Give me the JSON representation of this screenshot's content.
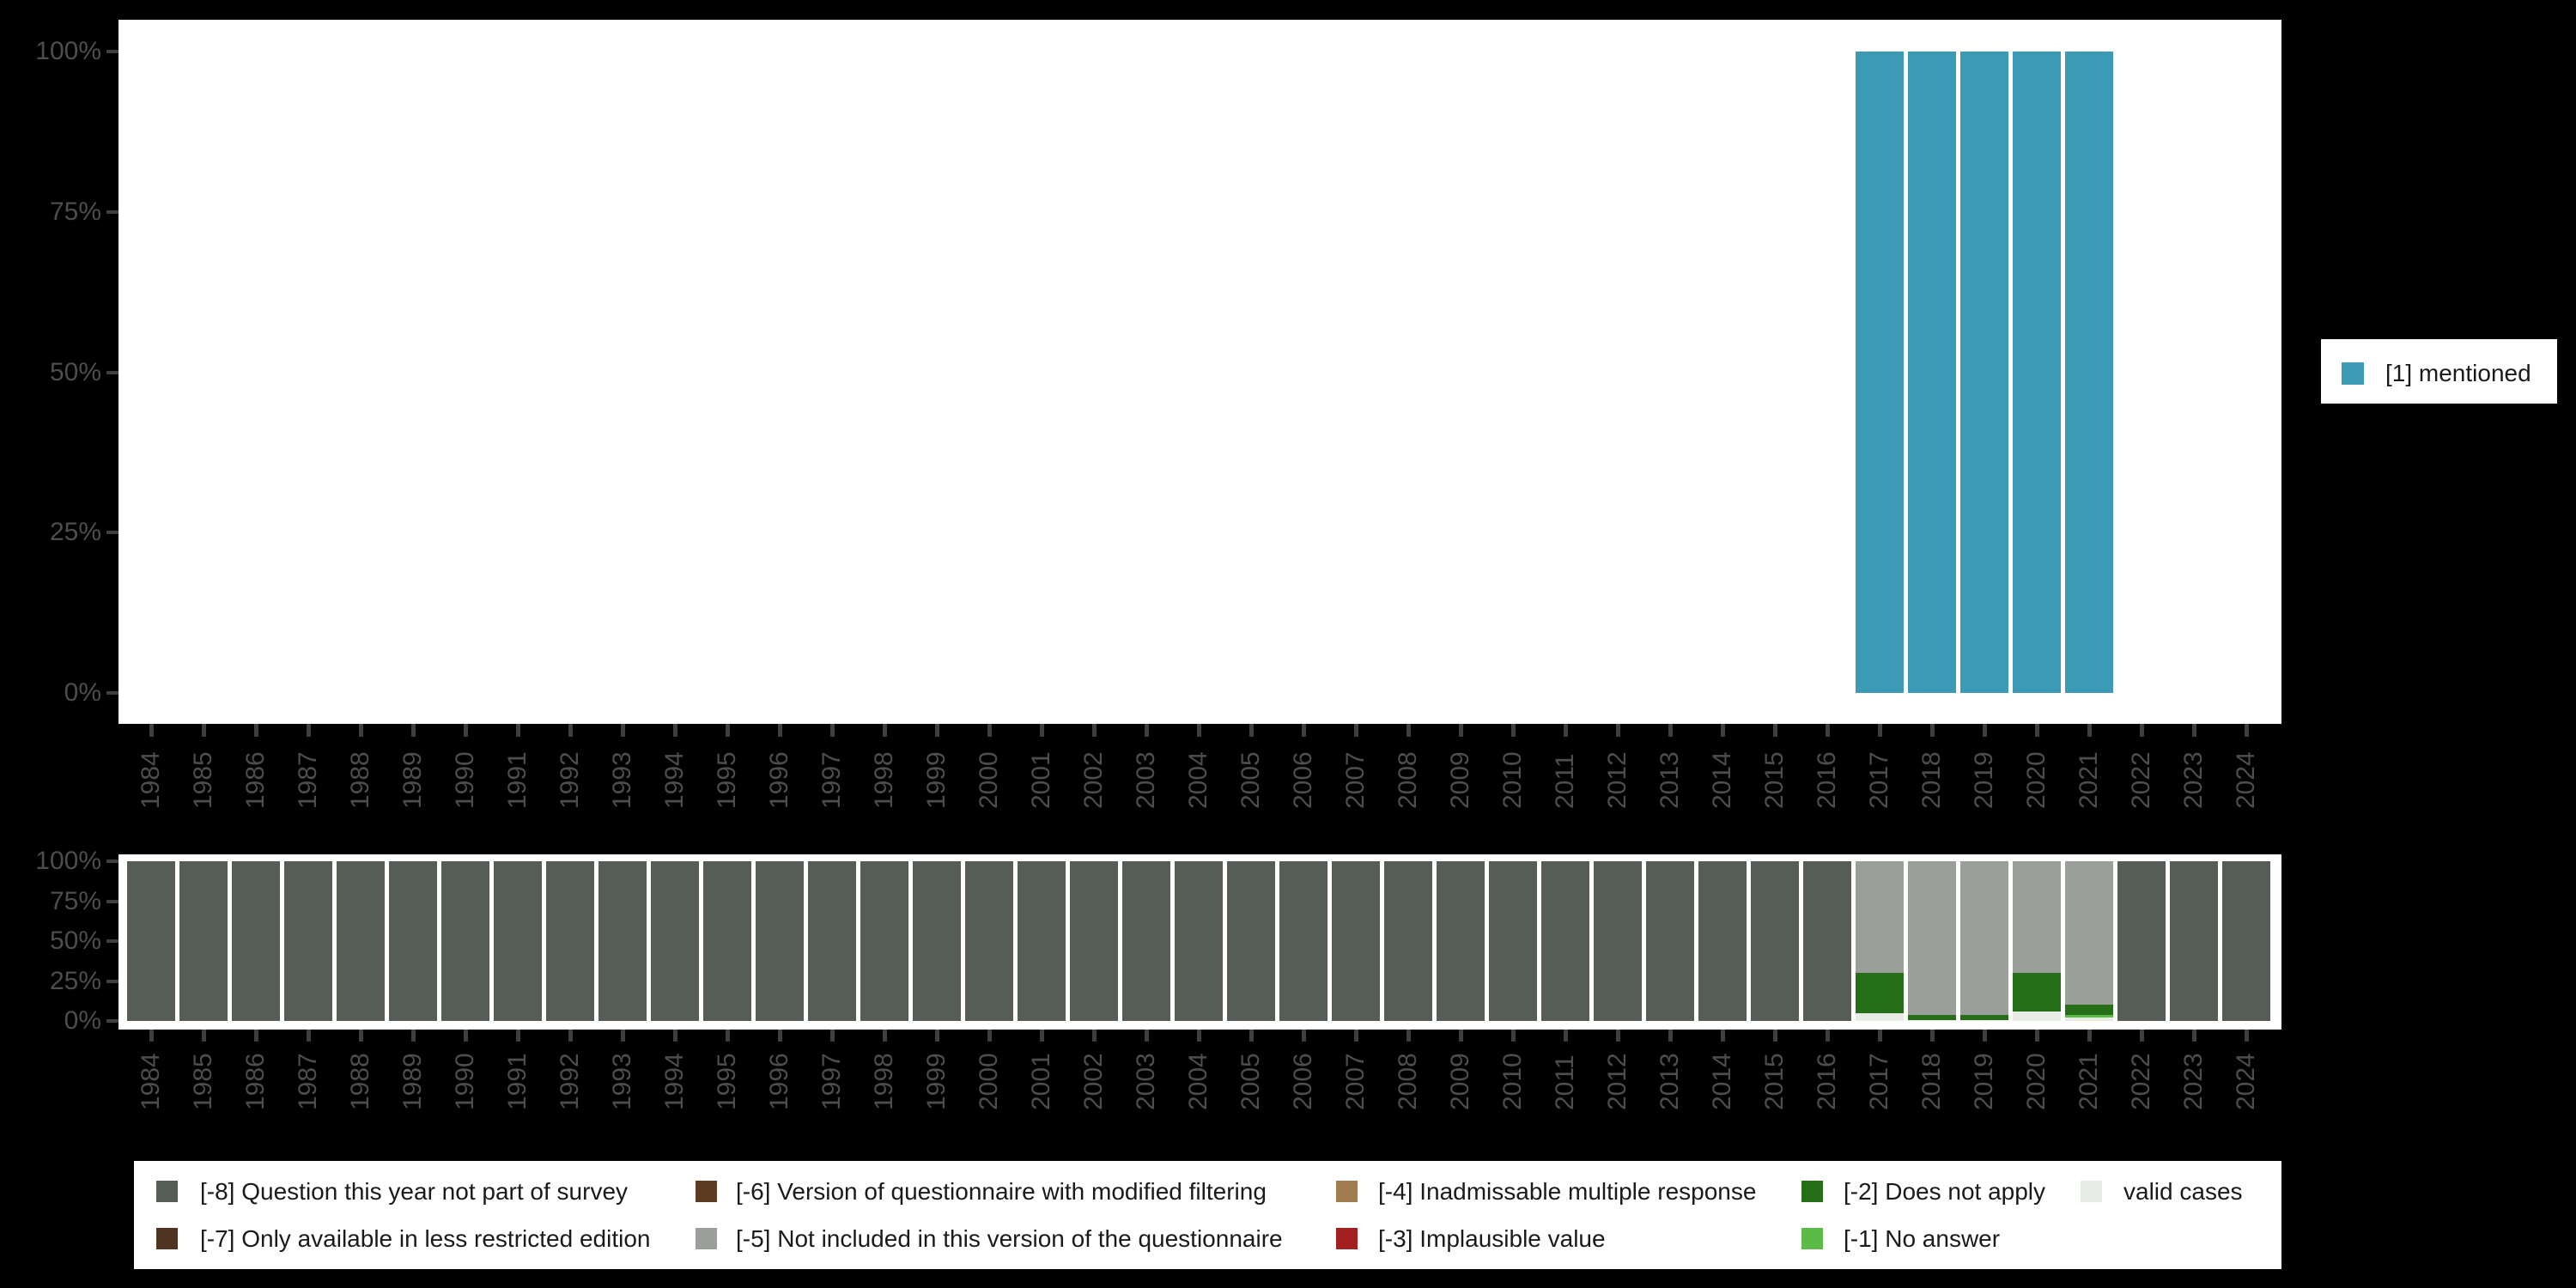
{
  "colors": {
    "background": "#000000",
    "plot_background": "#ffffff",
    "axis_label": "#4d4d4d",
    "tick_mark": "#3f3f3f",
    "legend_text": "#1a1a1a",
    "mentioned": "#3d9ab4",
    "m8": "#565d56",
    "m7": "#4f3422",
    "m6": "#5e3c1f",
    "m5": "#9aa099",
    "m4": "#a17c52",
    "m3": "#a32020",
    "m2": "#276e19",
    "m1": "#5cbb47",
    "valid": "#e7ebe5"
  },
  "years": [
    "1984",
    "1985",
    "1986",
    "1987",
    "1988",
    "1989",
    "1990",
    "1991",
    "1992",
    "1993",
    "1994",
    "1995",
    "1996",
    "1997",
    "1998",
    "1999",
    "2000",
    "2001",
    "2002",
    "2003",
    "2004",
    "2005",
    "2006",
    "2007",
    "2008",
    "2009",
    "2010",
    "2011",
    "2012",
    "2013",
    "2014",
    "2015",
    "2016",
    "2017",
    "2018",
    "2019",
    "2020",
    "2021",
    "2022",
    "2023",
    "2024"
  ],
  "y_tick_labels": [
    "100%",
    "75%",
    "50%",
    "25%",
    "0%"
  ],
  "legend_top": {
    "label": "[1] mentioned",
    "color": "#3d9ab4"
  },
  "legend_missing": {
    "columns": [
      {
        "items": [
          {
            "code": "-8",
            "label": "[-8] Question this year not part of survey",
            "color": "#565d56"
          },
          {
            "code": "-7",
            "label": "[-7] Only available in less restricted edition",
            "color": "#4f3422"
          }
        ]
      },
      {
        "items": [
          {
            "code": "-6",
            "label": "[-6] Version of questionnaire with modified filtering",
            "color": "#5e3c1f"
          },
          {
            "code": "-5",
            "label": "[-5] Not included in this version of the questionnaire",
            "color": "#9aa099"
          }
        ]
      },
      {
        "items": [
          {
            "code": "-4",
            "label": "[-4] Inadmissable multiple response",
            "color": "#a17c52"
          },
          {
            "code": "-3",
            "label": "[-3] Implausible value",
            "color": "#a32020"
          }
        ]
      },
      {
        "items": [
          {
            "code": "-2",
            "label": "[-2] Does not apply",
            "color": "#276e19"
          },
          {
            "code": "-1",
            "label": "[-1] No answer",
            "color": "#5cbb47"
          }
        ]
      },
      {
        "items": [
          {
            "code": "valid",
            "label": "valid cases",
            "color": "#e7ebe5"
          }
        ]
      }
    ]
  },
  "chart_data": [
    {
      "type": "bar",
      "title": "",
      "xlabel": "",
      "ylabel": "",
      "x": [
        "1984",
        "1985",
        "1986",
        "1987",
        "1988",
        "1989",
        "1990",
        "1991",
        "1992",
        "1993",
        "1994",
        "1995",
        "1996",
        "1997",
        "1998",
        "1999",
        "2000",
        "2001",
        "2002",
        "2003",
        "2004",
        "2005",
        "2006",
        "2007",
        "2008",
        "2009",
        "2010",
        "2011",
        "2012",
        "2013",
        "2014",
        "2015",
        "2016",
        "2017",
        "2018",
        "2019",
        "2020",
        "2021",
        "2022",
        "2023",
        "2024"
      ],
      "y_ticks": [
        "100%",
        "75%",
        "50%",
        "25%",
        "0%"
      ],
      "ylim": [
        0,
        100
      ],
      "grid": false,
      "legend_position": "right",
      "series": [
        {
          "name": "[1] mentioned",
          "color": "#3d9ab4",
          "values": [
            0,
            0,
            0,
            0,
            0,
            0,
            0,
            0,
            0,
            0,
            0,
            0,
            0,
            0,
            0,
            0,
            0,
            0,
            0,
            0,
            0,
            0,
            0,
            0,
            0,
            0,
            0,
            0,
            0,
            0,
            0,
            0,
            0,
            100,
            100,
            100,
            100,
            100,
            0,
            0,
            0
          ]
        }
      ]
    },
    {
      "type": "bar",
      "title": "",
      "xlabel": "",
      "ylabel": "",
      "x": [
        "1984",
        "1985",
        "1986",
        "1987",
        "1988",
        "1989",
        "1990",
        "1991",
        "1992",
        "1993",
        "1994",
        "1995",
        "1996",
        "1997",
        "1998",
        "1999",
        "2000",
        "2001",
        "2002",
        "2003",
        "2004",
        "2005",
        "2006",
        "2007",
        "2008",
        "2009",
        "2010",
        "2011",
        "2012",
        "2013",
        "2014",
        "2015",
        "2016",
        "2017",
        "2018",
        "2019",
        "2020",
        "2021",
        "2022",
        "2023",
        "2024"
      ],
      "y_ticks": [
        "100%",
        "75%",
        "50%",
        "25%",
        "0%"
      ],
      "ylim": [
        0,
        100
      ],
      "grid": false,
      "stacked": true,
      "stack_from": "bottom",
      "legend_position": "bottom",
      "series": [
        {
          "name": "valid cases",
          "color": "#e7ebe5",
          "values": [
            0,
            0,
            0,
            0,
            0,
            0,
            0,
            0,
            0,
            0,
            0,
            0,
            0,
            0,
            0,
            0,
            0,
            0,
            0,
            0,
            0,
            0,
            0,
            0,
            0,
            0,
            0,
            0,
            0,
            0,
            0,
            0,
            0,
            5,
            0.5,
            0.5,
            6,
            2,
            0,
            0,
            0
          ]
        },
        {
          "name": "[-1] No answer",
          "color": "#5cbb47",
          "values": [
            0,
            0,
            0,
            0,
            0,
            0,
            0,
            0,
            0,
            0,
            0,
            0,
            0,
            0,
            0,
            0,
            0,
            0,
            0,
            0,
            0,
            0,
            0,
            0,
            0,
            0,
            0,
            0,
            0,
            0,
            0,
            0,
            0,
            0,
            0,
            0,
            0,
            1.5,
            0,
            0,
            0
          ]
        },
        {
          "name": "[-2] Does not apply",
          "color": "#276e19",
          "values": [
            0,
            0,
            0,
            0,
            0,
            0,
            0,
            0,
            0,
            0,
            0,
            0,
            0,
            0,
            0,
            0,
            0,
            0,
            0,
            0,
            0,
            0,
            0,
            0,
            0,
            0,
            0,
            0,
            0,
            0,
            0,
            0,
            0,
            25,
            3,
            3.5,
            24,
            6.5,
            0,
            0,
            0
          ]
        },
        {
          "name": "[-5] Not included in this version of the questionnaire",
          "color": "#9aa099",
          "values": [
            0,
            0,
            0,
            0,
            0,
            0,
            0,
            0,
            0,
            0,
            0,
            0,
            0,
            0,
            0,
            0,
            0,
            0,
            0,
            0,
            0,
            0,
            0,
            0,
            0,
            0,
            0,
            0,
            0,
            0,
            0,
            0,
            0,
            70,
            96.5,
            96,
            70,
            90,
            0,
            0,
            0
          ]
        },
        {
          "name": "[-8] Question this year not part of survey",
          "color": "#565d56",
          "values": [
            100,
            100,
            100,
            100,
            100,
            100,
            100,
            100,
            100,
            100,
            100,
            100,
            100,
            100,
            100,
            100,
            100,
            100,
            100,
            100,
            100,
            100,
            100,
            100,
            100,
            100,
            100,
            100,
            100,
            100,
            100,
            100,
            100,
            0,
            0,
            0,
            0,
            0,
            100,
            100,
            100
          ]
        }
      ]
    }
  ]
}
